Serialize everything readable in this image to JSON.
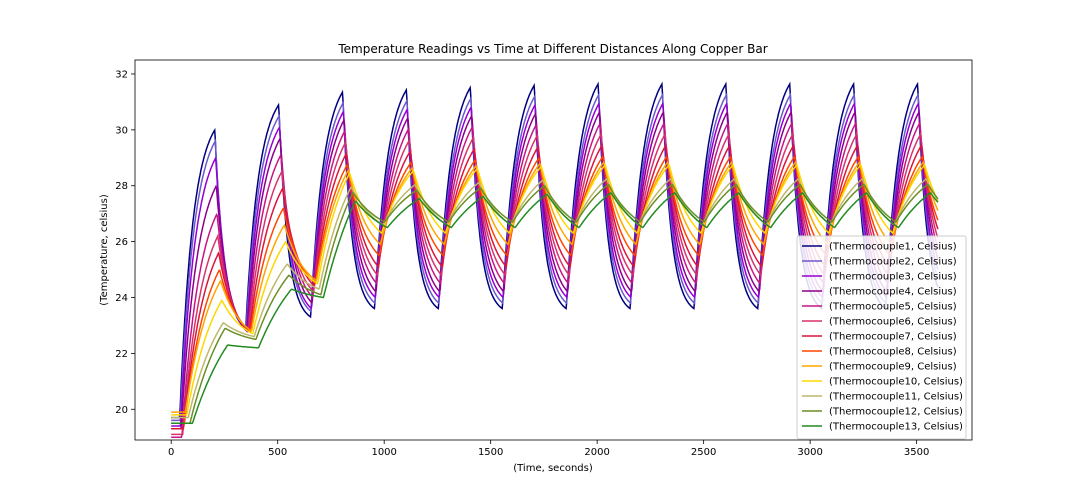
{
  "chart_data": {
    "type": "line",
    "title": "Temperature Readings vs Time at Different Distances Along Copper Bar",
    "xlabel": "(Time, seconds)",
    "ylabel": "(Temperature, celsius)",
    "xlim": [
      -170,
      3760
    ],
    "ylim": [
      18.9,
      32.5
    ],
    "x_ticks": [
      0,
      500,
      1000,
      1500,
      2000,
      2500,
      3000,
      3500
    ],
    "y_ticks": [
      20,
      22,
      24,
      26,
      28,
      30,
      32
    ],
    "grid": false,
    "legend_position": "lower right",
    "x_range": [
      0,
      3600
    ],
    "series": [
      {
        "name": "(Thermocouple1, Celsius)",
        "color": "#000080",
        "start": 19.7,
        "peak_first": 30.0,
        "peak_second": 30.9,
        "peak_ss": 31.6,
        "trough_first": 22.9,
        "trough_second": 23.3,
        "trough_ss": 23.6,
        "cold_first": 22.9,
        "rise_tau": 62,
        "fall_tau": 42,
        "lag": 0
      },
      {
        "name": "(Thermocouple2, Celsius)",
        "color": "#6a5acd",
        "start": 19.6,
        "peak_first": 29.6,
        "peak_second": 30.5,
        "peak_ss": 31.2,
        "trough_first": 22.9,
        "trough_second": 23.5,
        "trough_ss": 23.8,
        "cold_first": 22.9,
        "rise_tau": 66,
        "fall_tau": 46,
        "lag": 2
      },
      {
        "name": "(Thermocouple3, Celsius)",
        "color": "#9400d3",
        "start": 19.4,
        "peak_first": 29.0,
        "peak_second": 30.1,
        "peak_ss": 30.9,
        "trough_first": 22.8,
        "trough_second": 23.6,
        "trough_ss": 24.0,
        "cold_first": 22.8,
        "rise_tau": 70,
        "fall_tau": 50,
        "lag": 4
      },
      {
        "name": "(Thermocouple4, Celsius)",
        "color": "#8b008b",
        "start": 19.3,
        "peak_first": 28.0,
        "peak_second": 29.7,
        "peak_ss": 30.6,
        "trough_first": 22.8,
        "trough_second": 23.8,
        "trough_ss": 24.2,
        "cold_first": 22.8,
        "rise_tau": 76,
        "fall_tau": 56,
        "lag": 7
      },
      {
        "name": "(Thermocouple5, Celsius)",
        "color": "#c71585",
        "start": 19.0,
        "peak_first": 27.0,
        "peak_second": 29.1,
        "peak_ss": 30.2,
        "trough_first": 22.8,
        "trough_second": 24.0,
        "trough_ss": 24.5,
        "cold_first": 22.8,
        "rise_tau": 84,
        "fall_tau": 62,
        "lag": 10
      },
      {
        "name": "(Thermocouple6, Celsius)",
        "color": "#d6336c",
        "start": 19.1,
        "peak_first": 26.2,
        "peak_second": 28.5,
        "peak_ss": 29.8,
        "trough_first": 22.8,
        "trough_second": 24.2,
        "trough_ss": 24.8,
        "cold_first": 22.8,
        "rise_tau": 92,
        "fall_tau": 68,
        "lag": 14
      },
      {
        "name": "(Thermocouple7, Celsius)",
        "color": "#dc143c",
        "start": 19.3,
        "peak_first": 25.6,
        "peak_second": 27.9,
        "peak_ss": 29.4,
        "trough_first": 22.8,
        "trough_second": 24.4,
        "trough_ss": 25.1,
        "cold_first": 22.8,
        "rise_tau": 102,
        "fall_tau": 76,
        "lag": 18
      },
      {
        "name": "(Thermocouple8, Celsius)",
        "color": "#ff4500",
        "start": 19.5,
        "peak_first": 25.0,
        "peak_second": 27.2,
        "peak_ss": 29.0,
        "trough_first": 22.8,
        "trough_second": 24.5,
        "trough_ss": 25.5,
        "cold_first": 22.8,
        "rise_tau": 112,
        "fall_tau": 84,
        "lag": 22
      },
      {
        "name": "(Thermocouple9, Celsius)",
        "color": "#ffa500",
        "start": 19.9,
        "peak_first": 24.6,
        "peak_second": 26.6,
        "peak_ss": 28.8,
        "trough_first": 22.8,
        "trough_second": 24.6,
        "trough_ss": 25.9,
        "cold_first": 22.8,
        "rise_tau": 124,
        "fall_tau": 94,
        "lag": 27
      },
      {
        "name": "(Thermocouple10, Celsius)",
        "color": "#ffd700",
        "start": 19.8,
        "peak_first": 23.9,
        "peak_second": 26.0,
        "peak_ss": 28.7,
        "trough_first": 22.7,
        "trough_second": 24.5,
        "trough_ss": 26.3,
        "cold_first": 22.7,
        "rise_tau": 140,
        "fall_tau": 106,
        "lag": 33
      },
      {
        "name": "(Thermocouple11, Celsius)",
        "color": "#bdb76b",
        "start": 19.7,
        "peak_first": 23.1,
        "peak_second": 25.2,
        "peak_ss": 28.2,
        "trough_first": 22.6,
        "trough_second": 24.3,
        "trough_ss": 26.6,
        "cold_first": 22.6,
        "rise_tau": 160,
        "fall_tau": 122,
        "lag": 40
      },
      {
        "name": "(Thermocouple12, Celsius)",
        "color": "#6b8e23",
        "start": 19.5,
        "peak_first": 22.9,
        "peak_second": 24.8,
        "peak_ss": 28.0,
        "trough_first": 22.5,
        "trough_second": 24.1,
        "trough_ss": 26.7,
        "cold_first": 22.5,
        "rise_tau": 185,
        "fall_tau": 140,
        "lag": 48
      },
      {
        "name": "(Thermocouple13, Celsius)",
        "color": "#228b22",
        "start": 19.5,
        "peak_first": 22.3,
        "peak_second": 24.3,
        "peak_ss": 27.7,
        "trough_first": 22.2,
        "trough_second": 24.0,
        "trough_ss": 26.5,
        "cold_first": 22.2,
        "rise_tau": 220,
        "fall_tau": 170,
        "lag": 60
      }
    ]
  }
}
